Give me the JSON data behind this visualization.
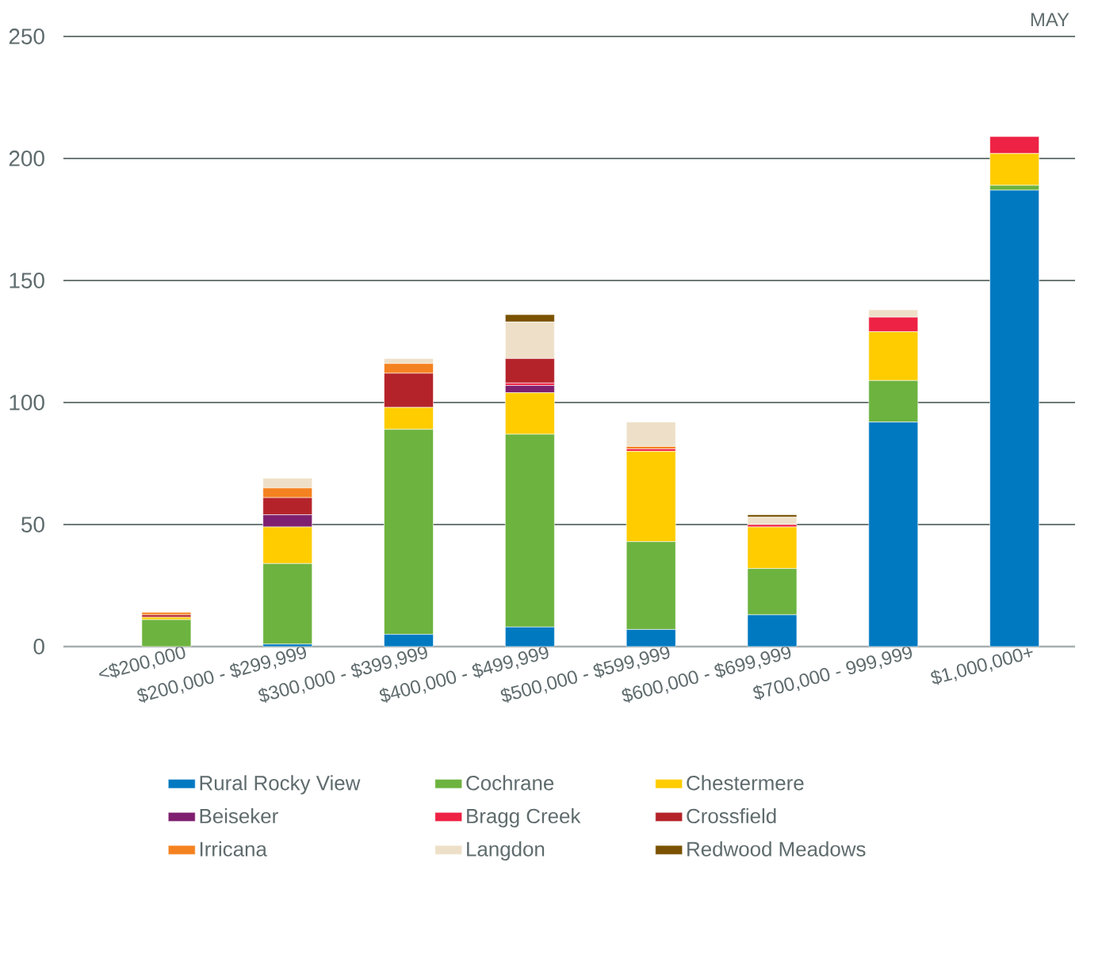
{
  "chart_data": {
    "type": "bar",
    "title": "MAY",
    "stacked": true,
    "grid": "y",
    "legend": "bottom",
    "categories": [
      "<$200,000",
      "$200,000 - $299,999",
      "$300,000 - $399,999",
      "$400,000 - $499,999",
      "$500,000 - $599,999",
      "$600,000 - $699,999",
      "$700,000 - 999,999",
      "$1,000,000+"
    ],
    "ylim": [
      0,
      250
    ],
    "yticks": [
      0,
      50,
      100,
      150,
      200,
      250
    ],
    "series": [
      {
        "name": "Rural Rocky View",
        "color": "#0079c1",
        "values": [
          0,
          1,
          5,
          8,
          7,
          13,
          92,
          187
        ]
      },
      {
        "name": "Cochrane",
        "color": "#6db33f",
        "values": [
          11,
          33,
          84,
          79,
          36,
          19,
          17,
          2
        ]
      },
      {
        "name": "Chestermere",
        "color": "#ffcc00",
        "values": [
          1,
          15,
          9,
          17,
          37,
          17,
          20,
          13
        ]
      },
      {
        "name": "Beiseker",
        "color": "#7f1f6f",
        "values": [
          0,
          5,
          0,
          3,
          0,
          0,
          0,
          0
        ]
      },
      {
        "name": "Bragg Creek",
        "color": "#ee2244",
        "values": [
          0,
          0,
          0,
          1,
          1,
          1,
          6,
          7
        ]
      },
      {
        "name": "Crossfield",
        "color": "#b5232a",
        "values": [
          1,
          7,
          14,
          10,
          0,
          0,
          0,
          0
        ]
      },
      {
        "name": "Irricana",
        "color": "#f58220",
        "values": [
          1,
          4,
          4,
          0,
          1,
          0,
          0,
          0
        ]
      },
      {
        "name": "Langdon",
        "color": "#eee0c8",
        "values": [
          0,
          4,
          2,
          15,
          10,
          3,
          3,
          0
        ]
      },
      {
        "name": "Redwood Meadows",
        "color": "#7a5200",
        "values": [
          0,
          0,
          0,
          3,
          0,
          1,
          0,
          0
        ]
      }
    ]
  }
}
